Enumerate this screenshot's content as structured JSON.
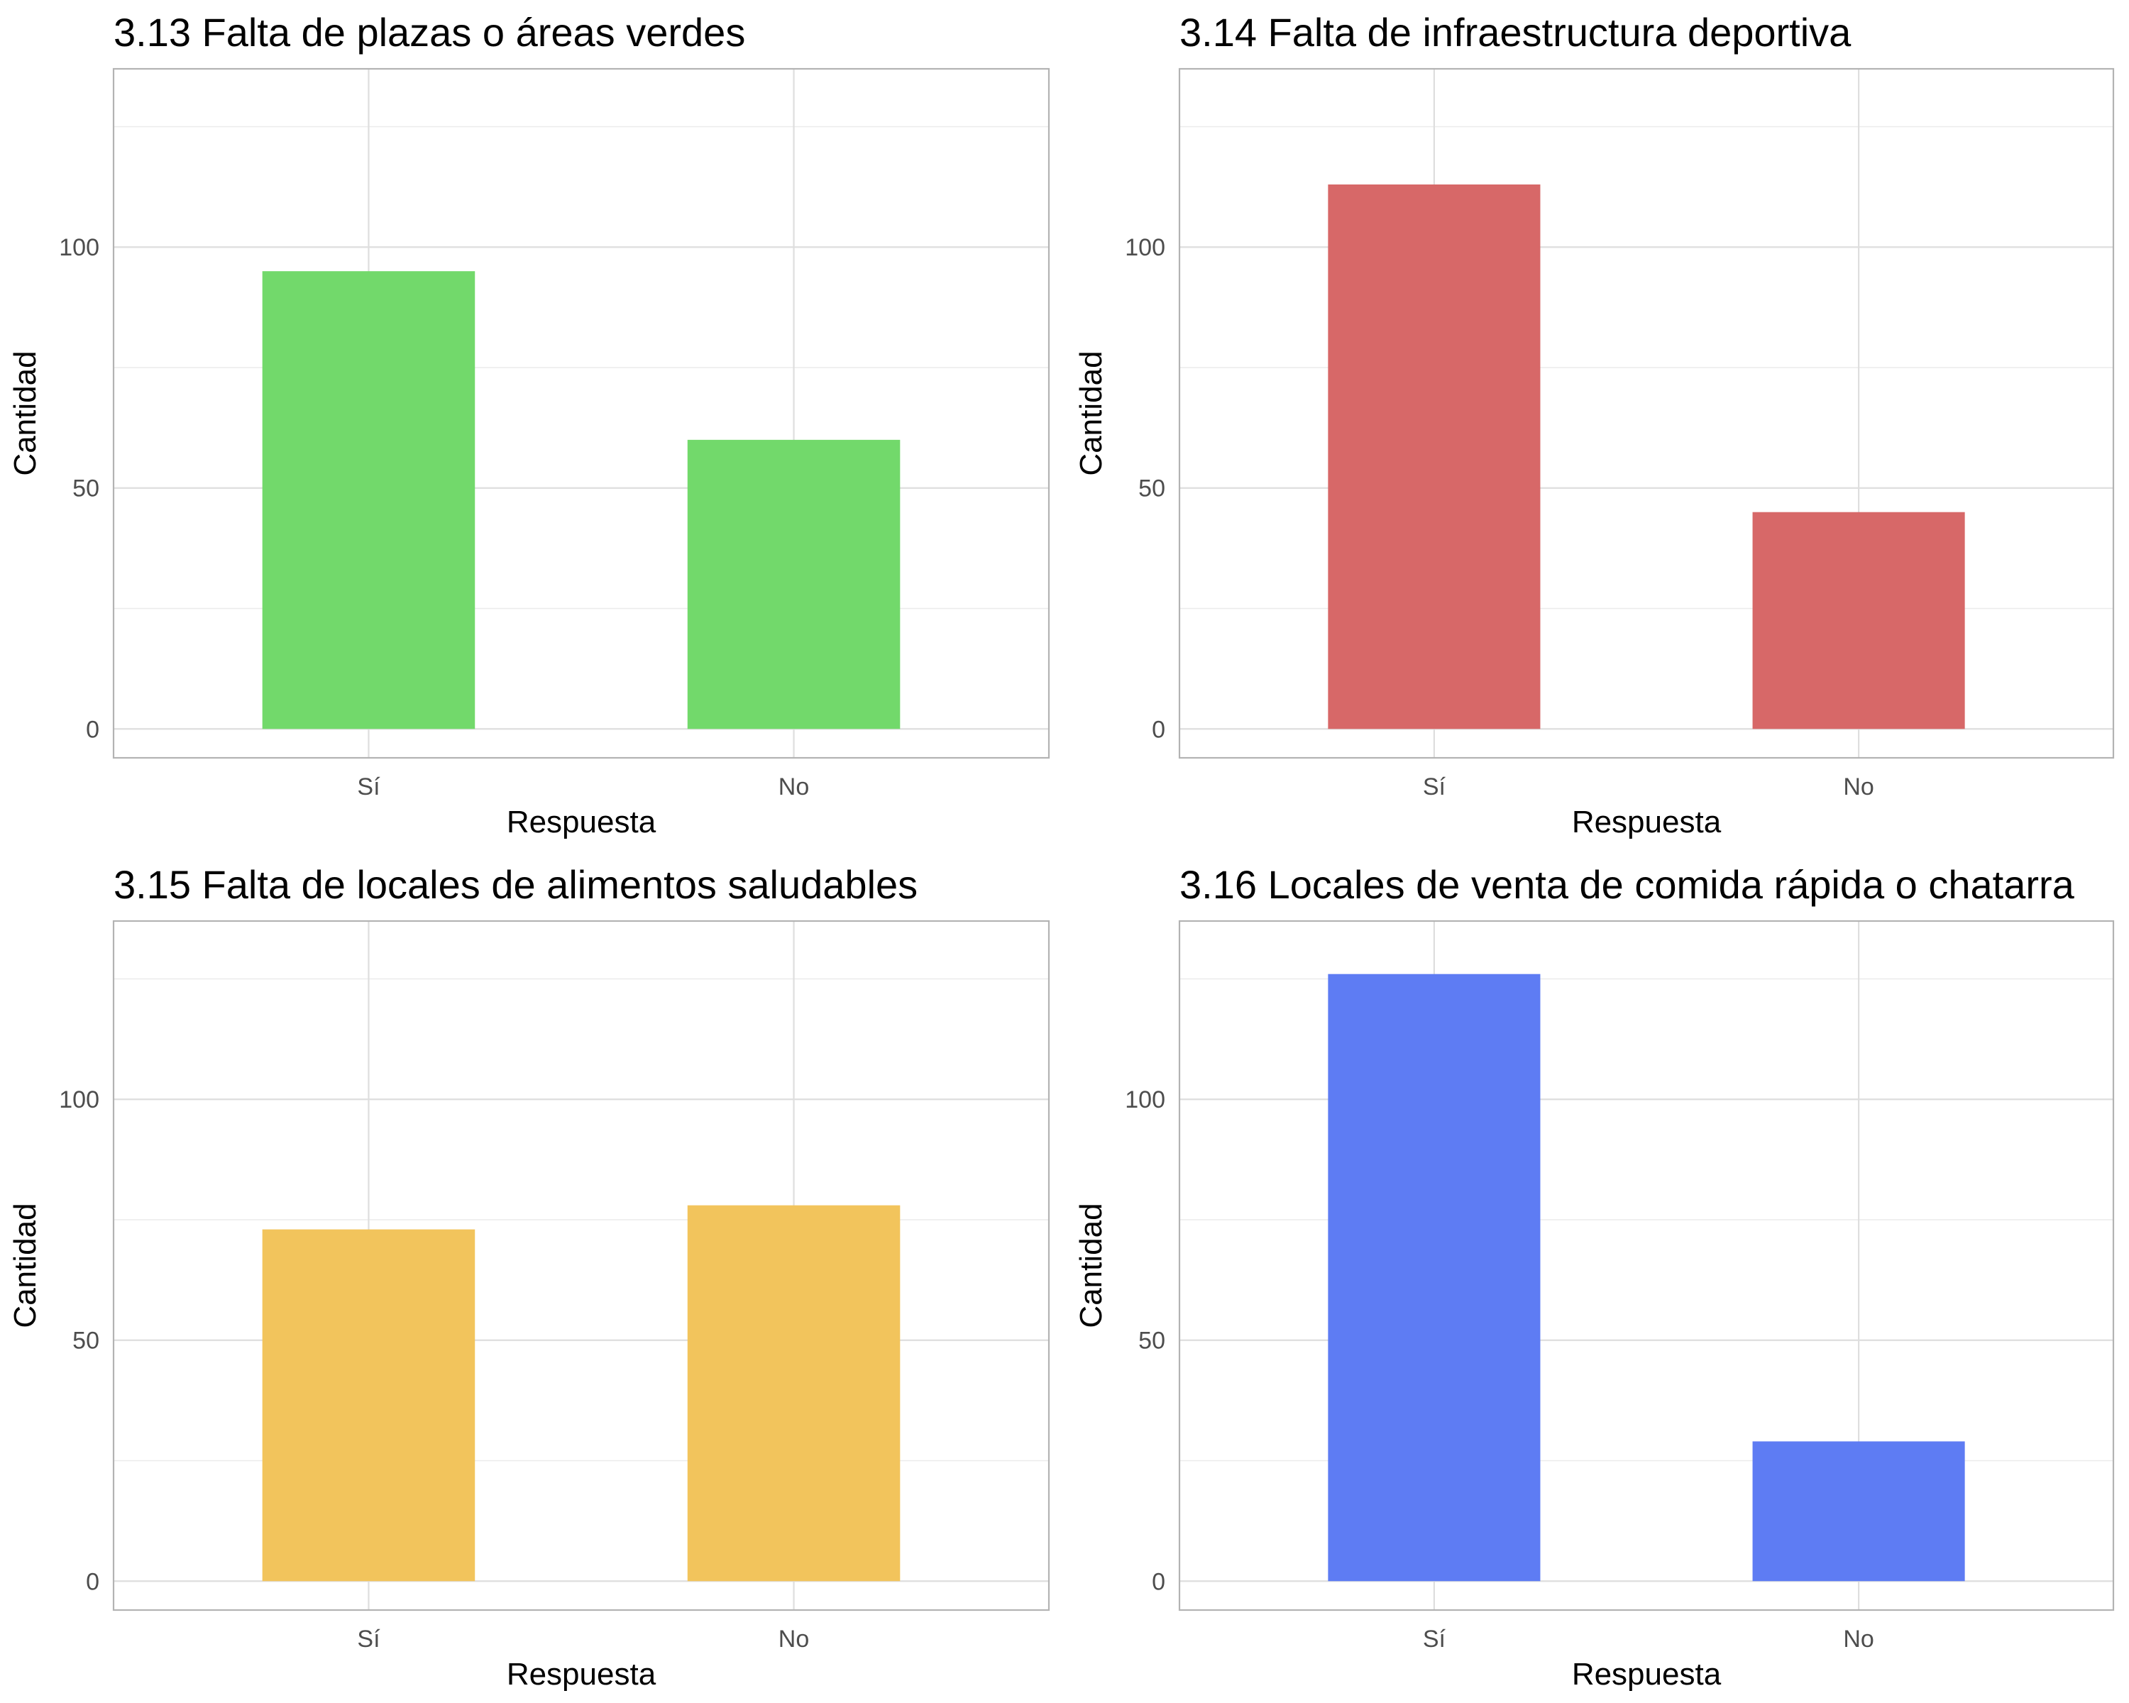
{
  "chart_data": [
    {
      "type": "bar",
      "title": "3.13 Falta de plazas o áreas verdes",
      "xlabel": "Respuesta",
      "ylabel": "Cantidad",
      "categories": [
        "Sí",
        "No"
      ],
      "values": [
        95,
        60
      ],
      "ylim": [
        -6,
        137
      ],
      "yticks": [
        0,
        50,
        100
      ],
      "color": "#72d96b",
      "grid": true
    },
    {
      "type": "bar",
      "title": "3.14 Falta de infraestructura deportiva",
      "xlabel": "Respuesta",
      "ylabel": "Cantidad",
      "categories": [
        "Sí",
        "No"
      ],
      "values": [
        113,
        45
      ],
      "ylim": [
        -6,
        137
      ],
      "yticks": [
        0,
        50,
        100
      ],
      "color": "#d76868",
      "grid": true
    },
    {
      "type": "bar",
      "title": "3.15 Falta de locales de alimentos saludables",
      "xlabel": "Respuesta",
      "ylabel": "Cantidad",
      "categories": [
        "Sí",
        "No"
      ],
      "values": [
        73,
        78
      ],
      "ylim": [
        -6,
        137
      ],
      "yticks": [
        0,
        50,
        100
      ],
      "color": "#f2c45c",
      "grid": true
    },
    {
      "type": "bar",
      "title": "3.16 Locales de venta de comida rápida o chatarra",
      "xlabel": "Respuesta",
      "ylabel": "Cantidad",
      "categories": [
        "Sí",
        "No"
      ],
      "values": [
        126,
        29
      ],
      "ylim": [
        -6,
        137
      ],
      "yticks": [
        0,
        50,
        100
      ],
      "color": "#5e7cf3",
      "grid": true
    }
  ]
}
